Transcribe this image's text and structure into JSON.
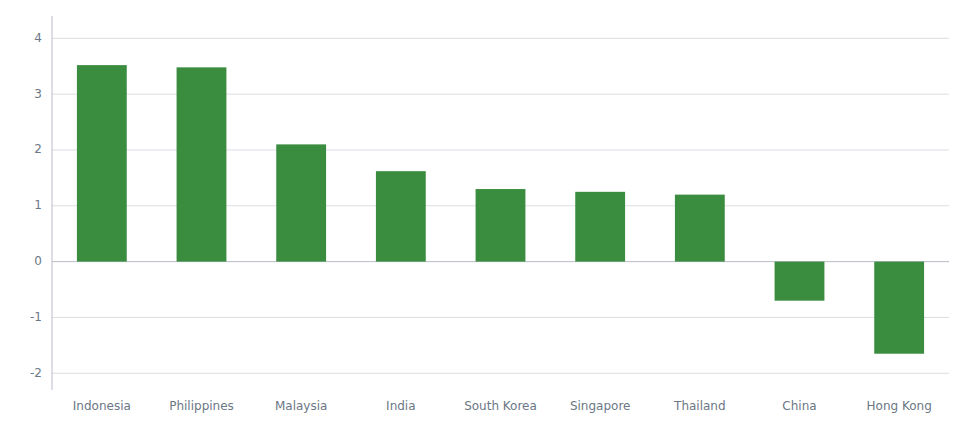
{
  "chart_data": {
    "type": "bar",
    "categories": [
      "Indonesia",
      "Philippines",
      "Malaysia",
      "India",
      "South Korea",
      "Singapore",
      "Thailand",
      "China",
      "Hong Kong"
    ],
    "values": [
      3.52,
      3.48,
      2.1,
      1.62,
      1.3,
      1.25,
      1.2,
      -0.7,
      -1.65
    ],
    "color": "#3a8c3f",
    "ylim": [
      -2.3,
      4.4
    ],
    "yticks": [
      -2,
      -1,
      0,
      1,
      2,
      3,
      4
    ],
    "grid": true
  }
}
